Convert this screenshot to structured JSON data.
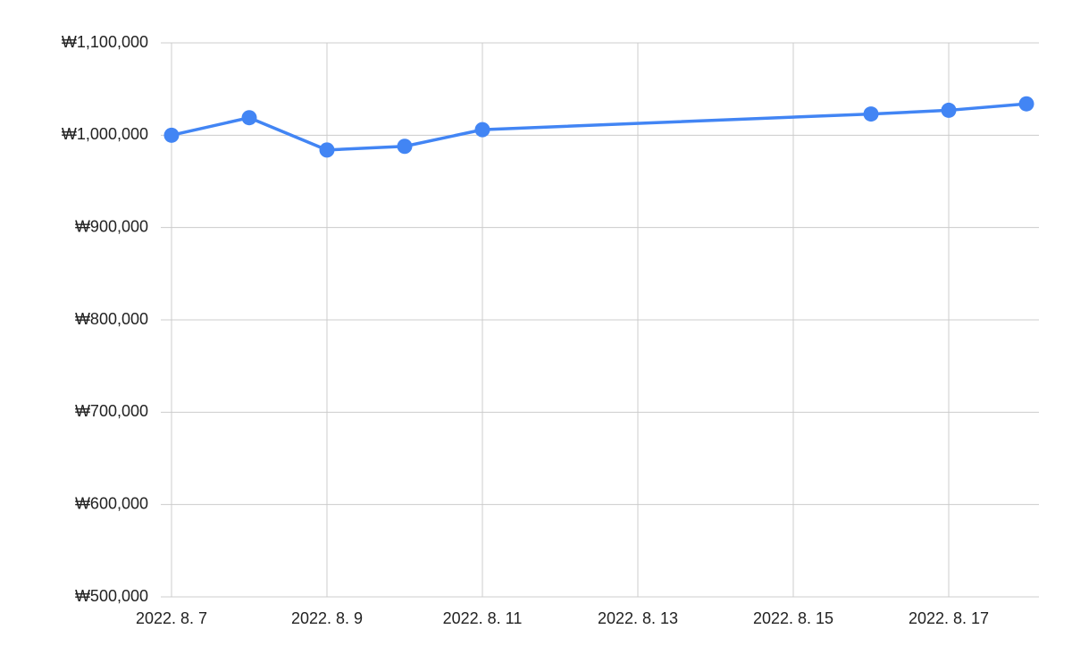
{
  "chart_data": {
    "type": "line",
    "x": [
      "2022-08-07",
      "2022-08-08",
      "2022-08-09",
      "2022-08-10",
      "2022-08-11",
      "2022-08-16",
      "2022-08-17",
      "2022-08-18"
    ],
    "values": [
      1000000,
      1019000,
      984000,
      988000,
      1006000,
      1023000,
      1027000,
      1034000
    ],
    "color": "#4285f4",
    "xlim": [
      "2022-08-07",
      "2022-08-18"
    ],
    "xticks": [
      {
        "value": "2022-08-07",
        "label": "2022. 8. 7"
      },
      {
        "value": "2022-08-09",
        "label": "2022. 8. 9"
      },
      {
        "value": "2022-08-11",
        "label": "2022. 8. 11"
      },
      {
        "value": "2022-08-13",
        "label": "2022. 8. 13"
      },
      {
        "value": "2022-08-15",
        "label": "2022. 8. 15"
      },
      {
        "value": "2022-08-17",
        "label": "2022. 8. 17"
      }
    ],
    "ylim": [
      500000,
      1100000
    ],
    "yticks": [
      {
        "value": 500000,
        "label": "₩500,000"
      },
      {
        "value": 600000,
        "label": "₩600,000"
      },
      {
        "value": 700000,
        "label": "₩700,000"
      },
      {
        "value": 800000,
        "label": "₩800,000"
      },
      {
        "value": 900000,
        "label": "₩900,000"
      },
      {
        "value": 1000000,
        "label": "₩1,000,000"
      },
      {
        "value": 1100000,
        "label": "₩1,100,000"
      }
    ],
    "grid": true
  }
}
